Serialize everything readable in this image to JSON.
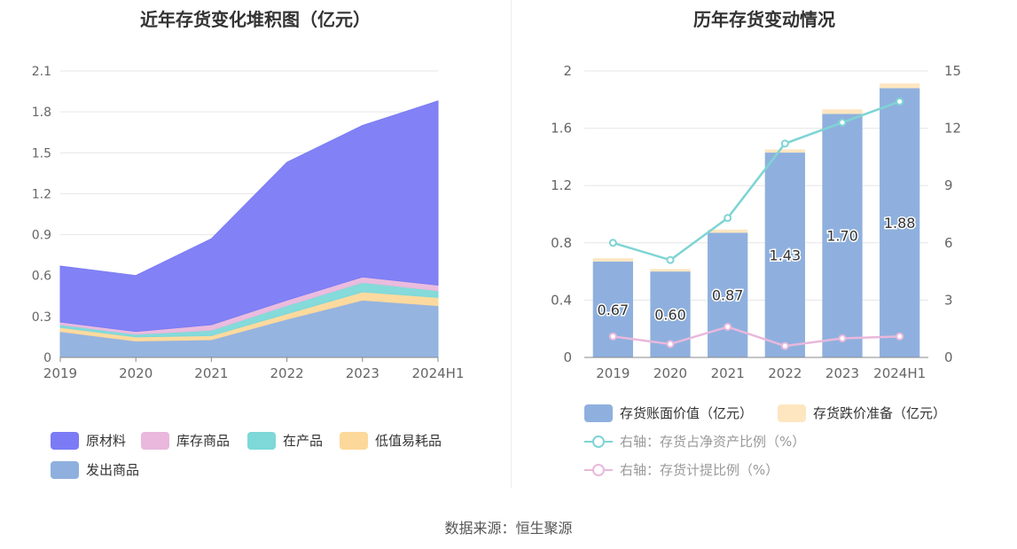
{
  "source_text": "数据来源：恒生聚源",
  "left_chart": {
    "title": "近年存货变化堆积图（亿元）"
  },
  "right_chart": {
    "title": "历年存货变动情况"
  },
  "chart_data": [
    {
      "type": "area",
      "stacked": true,
      "title": "近年存货变化堆积图（亿元）",
      "categories": [
        "2019",
        "2020",
        "2021",
        "2022",
        "2023",
        "2024H1"
      ],
      "y_ticks": [
        "0",
        "0.3",
        "0.6",
        "0.9",
        "1.2",
        "1.5",
        "1.8",
        "2.1"
      ],
      "ylim": [
        0,
        2.1
      ],
      "grid": true,
      "legend_position": "bottom",
      "series": [
        {
          "name": "发出商品",
          "color": "#8fb0de",
          "values": [
            0.19,
            0.12,
            0.13,
            0.28,
            0.42,
            0.38
          ]
        },
        {
          "name": "低值易耗品",
          "color": "#fcd89a",
          "values": [
            0.03,
            0.03,
            0.03,
            0.04,
            0.06,
            0.06
          ]
        },
        {
          "name": "在产品",
          "color": "#7ed8d8",
          "values": [
            0.02,
            0.02,
            0.04,
            0.06,
            0.07,
            0.05
          ]
        },
        {
          "name": "库存商品",
          "color": "#e9b8dc",
          "values": [
            0.02,
            0.02,
            0.04,
            0.04,
            0.04,
            0.04
          ]
        },
        {
          "name": "原材料",
          "color": "#7b7bf5",
          "values": [
            0.41,
            0.41,
            0.63,
            1.01,
            1.11,
            1.35
          ]
        }
      ]
    },
    {
      "type": "bar",
      "title": "历年存货变动情况",
      "categories": [
        "2019",
        "2020",
        "2021",
        "2022",
        "2023",
        "2024H1"
      ],
      "y_left_ticks": [
        "0",
        "0.4",
        "0.8",
        "1.2",
        "1.6",
        "2"
      ],
      "ylim_left": [
        0,
        2
      ],
      "y_right_ticks": [
        "0",
        "3",
        "6",
        "9",
        "12",
        "15"
      ],
      "ylim_right": [
        0,
        15
      ],
      "grid": true,
      "legend_position": "bottom",
      "series": [
        {
          "name": "存货账面价值（亿元）",
          "kind": "bar",
          "axis": "left",
          "color": "#8fb0de",
          "values": [
            0.67,
            0.6,
            0.87,
            1.43,
            1.7,
            1.88
          ],
          "labels": [
            "0.67",
            "0.60",
            "0.87",
            "1.43",
            "1.70",
            "1.88"
          ]
        },
        {
          "name": "存货跌价准备（亿元）",
          "kind": "bar",
          "axis": "left",
          "color": "#fde6c0",
          "values": [
            0.01,
            0.005,
            0.01,
            0.01,
            0.02,
            0.02
          ]
        },
        {
          "name": "右轴：存货占净资产比例（%）",
          "kind": "line",
          "axis": "right",
          "color": "#7fd4d4",
          "values": [
            6.0,
            5.1,
            7.3,
            11.2,
            12.3,
            13.4
          ]
        },
        {
          "name": "右轴：存货计提比例（%）",
          "kind": "line",
          "axis": "right",
          "color": "#e9b8dc",
          "values": [
            1.1,
            0.7,
            1.6,
            0.6,
            1.0,
            1.1
          ]
        }
      ]
    }
  ]
}
